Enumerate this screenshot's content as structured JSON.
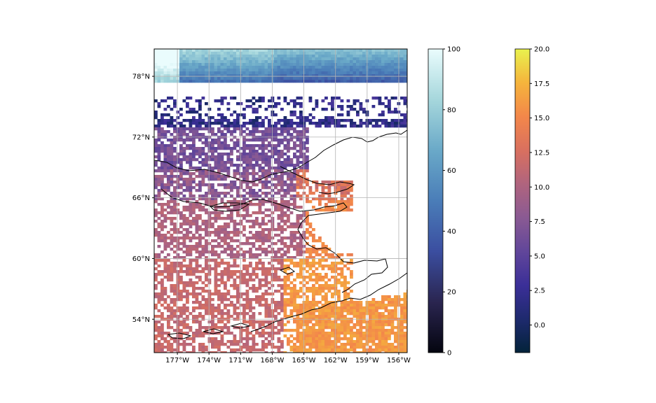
{
  "chart_data": {
    "type": "heatmap",
    "title": "",
    "projection": "PlateCarree",
    "extent": {
      "lon": [
        -179.2,
        -155.2
      ],
      "lat": [
        50.7,
        80.7
      ]
    },
    "grid": true,
    "x_ticks": [
      -177,
      -174,
      -171,
      -168,
      -165,
      -162,
      -159,
      -156
    ],
    "x_tick_labels": [
      "177°W",
      "174°W",
      "171°W",
      "168°W",
      "165°W",
      "162°W",
      "159°W",
      "156°W"
    ],
    "y_ticks": [
      54,
      60,
      66,
      72,
      78
    ],
    "y_tick_labels": [
      "54°N",
      "60°N",
      "66°N",
      "72°N",
      "78°N"
    ],
    "layers": [
      {
        "name": "",
        "cmap": "ice",
        "region": "high-latitude band, 77°N–80.7°N",
        "clim": [
          0,
          100
        ],
        "colorbar_ticks": [
          0,
          20,
          40,
          60,
          80,
          100
        ],
        "colorbar_tick_labels": [
          "0",
          "20",
          "40",
          "60",
          "80",
          "100"
        ],
        "colors": [
          "#04050f",
          "#2a2550",
          "#3b4ea0",
          "#4a7db8",
          "#6aa9c8",
          "#a6d7dc",
          "#eafcfd"
        ]
      },
      {
        "name": "",
        "cmap": "thermal",
        "region": "open-ocean cells south of the ice band",
        "clim": [
          -2,
          20
        ],
        "colorbar_ticks": [
          0.0,
          2.5,
          5.0,
          7.5,
          10.0,
          12.5,
          15.0,
          17.5,
          20.0
        ],
        "colorbar_tick_labels": [
          "0.0",
          "2.5",
          "5.0",
          "7.5",
          "10.0",
          "12.5",
          "15.0",
          "17.5",
          "20.0"
        ],
        "colors": [
          "#03233a",
          "#1e2a6e",
          "#3b2f98",
          "#61469a",
          "#8a5a93",
          "#b0647e",
          "#d9705f",
          "#f3874a",
          "#f5b43c",
          "#e9f24e"
        ]
      }
    ]
  }
}
